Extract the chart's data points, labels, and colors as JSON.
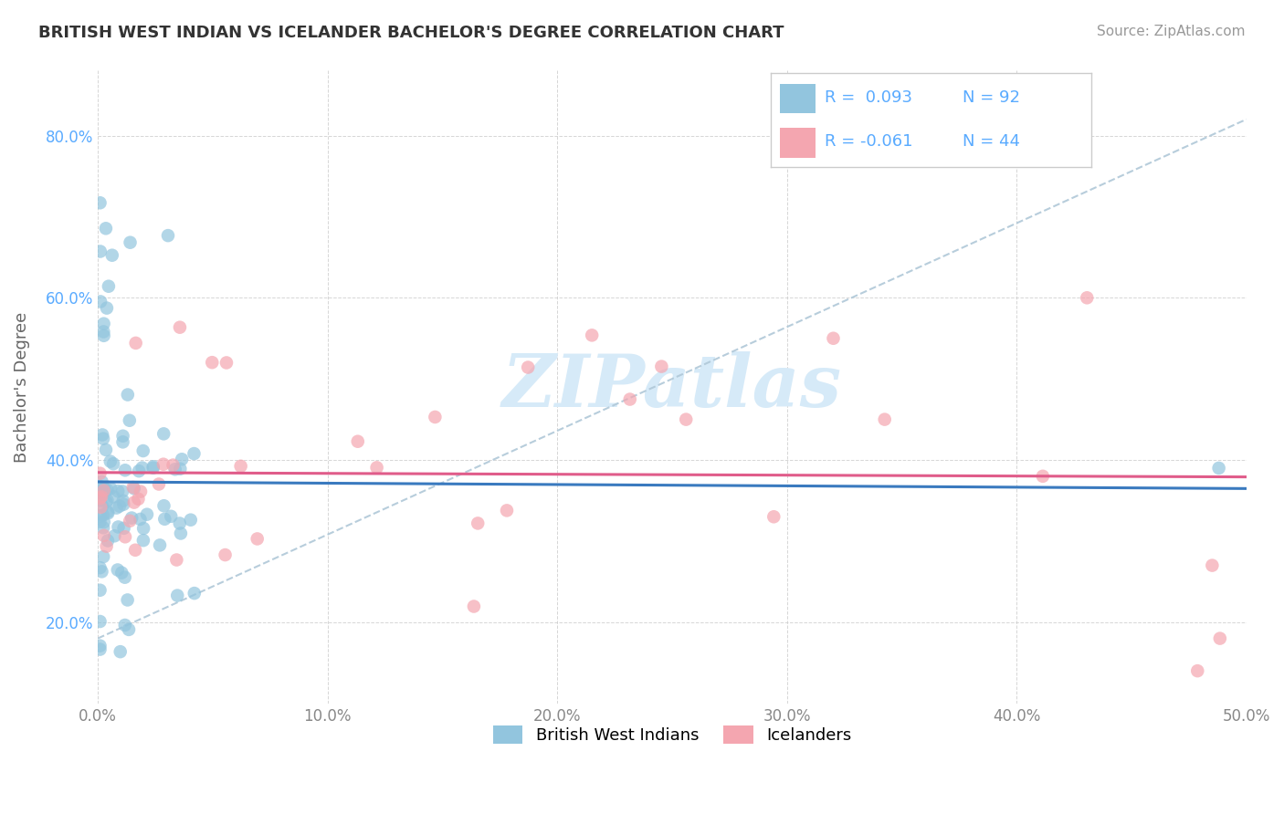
{
  "title": "BRITISH WEST INDIAN VS ICELANDER BACHELOR'S DEGREE CORRELATION CHART",
  "source": "Source: ZipAtlas.com",
  "ylabel": "Bachelor's Degree",
  "xlim": [
    0.0,
    0.5
  ],
  "ylim": [
    0.1,
    0.88
  ],
  "x_ticks": [
    0.0,
    0.1,
    0.2,
    0.3,
    0.4,
    0.5
  ],
  "x_ticklabels": [
    "0.0%",
    "10.0%",
    "20.0%",
    "30.0%",
    "40.0%",
    "50.0%"
  ],
  "y_ticks": [
    0.2,
    0.4,
    0.6,
    0.8
  ],
  "y_ticklabels": [
    "20.0%",
    "40.0%",
    "60.0%",
    "80.0%"
  ],
  "legend_labels": [
    "British West Indians",
    "Icelanders"
  ],
  "legend_r_values": [
    "0.093",
    "-0.061"
  ],
  "legend_n_values": [
    "92",
    "44"
  ],
  "blue_color": "#92c5de",
  "pink_color": "#f4a6b0",
  "blue_line_color": "#3a7abf",
  "pink_line_color": "#e05c8a",
  "dash_line_color": "#b0c8d8",
  "watermark_color": "#d6eaf8",
  "tick_color_y": "#5aabff",
  "tick_color_x": "#888888"
}
